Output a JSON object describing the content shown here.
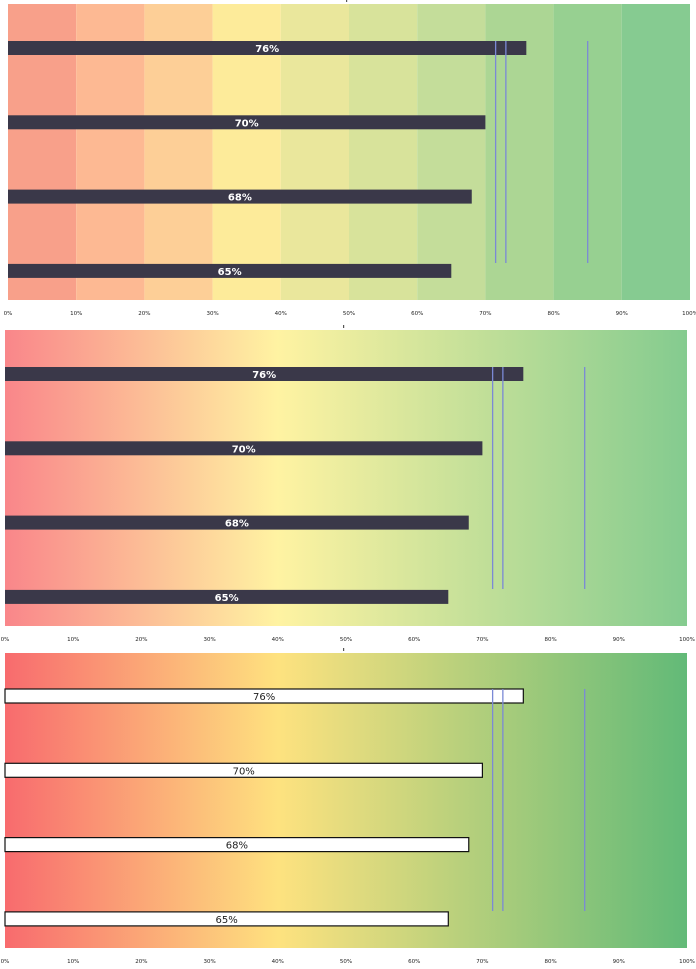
{
  "chart_data": [
    {
      "type": "bar",
      "orientation": "horizontal",
      "background": "banded",
      "band_colors": [
        "#f8a08a",
        "#fdb993",
        "#fdcf97",
        "#fdeb9a",
        "#eae79c",
        "#d8e39b",
        "#c4dd9a",
        "#acd694",
        "#97d091",
        "#86cb91"
      ],
      "bar_color": "#3a3849",
      "label_color": "#ffffff",
      "values": [
        76,
        70,
        68,
        65
      ],
      "data_labels": [
        "76%",
        "70%",
        "68%",
        "65%"
      ],
      "markers": [
        71.5,
        73,
        85
      ],
      "marker_color": "#7b89d6",
      "xlim": [
        0,
        100
      ],
      "xticks": [
        "0%",
        "10%",
        "20%",
        "30%",
        "40%",
        "50%",
        "60%",
        "70%",
        "80%",
        "90%",
        "100%"
      ],
      "grid": false
    },
    {
      "type": "bar",
      "orientation": "horizontal",
      "background": "gradient-soft",
      "gradient_stops": [
        {
          "at": 0,
          "color": "#f9868a"
        },
        {
          "at": 0.4,
          "color": "#fff3a2"
        },
        {
          "at": 1,
          "color": "#84cb8f"
        }
      ],
      "bar_color": "#3a3849",
      "label_color": "#ffffff",
      "values": [
        76,
        70,
        68,
        65
      ],
      "data_labels": [
        "76%",
        "70%",
        "68%",
        "65%"
      ],
      "markers": [
        71.5,
        73,
        85
      ],
      "marker_color": "#7b89d6",
      "xlim": [
        0,
        100
      ],
      "xticks": [
        "0%",
        "10%",
        "20%",
        "30%",
        "40%",
        "50%",
        "60%",
        "70%",
        "80%",
        "90%",
        "100%"
      ],
      "grid": false
    },
    {
      "type": "bar",
      "orientation": "horizontal",
      "background": "gradient-strong",
      "gradient_stops": [
        {
          "at": 0,
          "color": "#f86b6e"
        },
        {
          "at": 0.4,
          "color": "#fee27f"
        },
        {
          "at": 1,
          "color": "#62ba78"
        }
      ],
      "bar_color": "#ffffff",
      "bar_outline": "#111111",
      "label_color": "#222222",
      "values": [
        76,
        70,
        68,
        65
      ],
      "data_labels": [
        "76%",
        "70%",
        "68%",
        "65%"
      ],
      "markers": [
        71.5,
        73,
        85
      ],
      "marker_color": "#7b89d6",
      "xlim": [
        0,
        100
      ],
      "xticks": [
        "0%",
        "10%",
        "20%",
        "30%",
        "40%",
        "50%",
        "60%",
        "70%",
        "80%",
        "90%",
        "100%"
      ],
      "grid": false
    }
  ]
}
